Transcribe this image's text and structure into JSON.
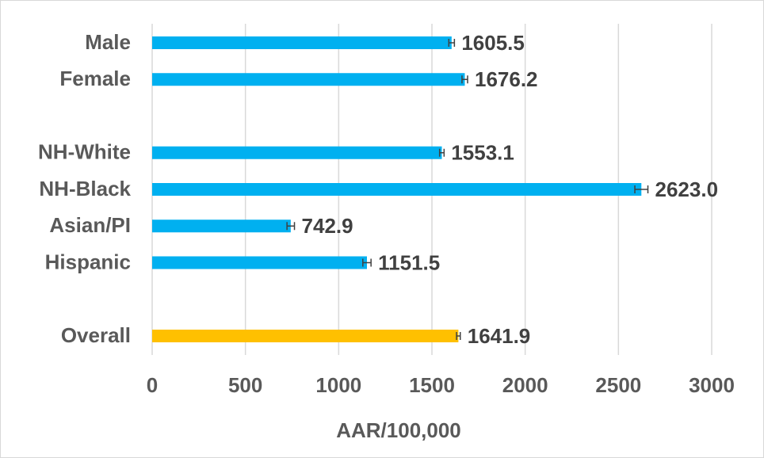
{
  "chart_data": {
    "type": "hbar",
    "categories": [
      "Male",
      "Female",
      null,
      "NH-White",
      "NH-Black",
      "Asian/PI",
      "Hispanic",
      null,
      "Overall"
    ],
    "values": [
      1605.5,
      1676.2,
      null,
      1553.1,
      2623.0,
      742.9,
      1151.5,
      null,
      1641.9
    ],
    "value_labels": [
      "1605.5",
      "1676.2",
      null,
      "1553.1",
      "2623.0",
      "742.9",
      "1151.5",
      null,
      "1641.9"
    ],
    "errors": [
      15,
      15,
      null,
      12,
      35,
      20,
      22,
      null,
      10
    ],
    "colors": [
      "#00b0f0",
      "#00b0f0",
      null,
      "#00b0f0",
      "#00b0f0",
      "#00b0f0",
      "#00b0f0",
      null,
      "#ffc000"
    ],
    "xlabel": "AAR/100,000",
    "xlim": [
      0,
      3000
    ],
    "xticks": [
      0,
      500,
      1000,
      1500,
      2000,
      2500,
      3000
    ],
    "grid": true
  }
}
